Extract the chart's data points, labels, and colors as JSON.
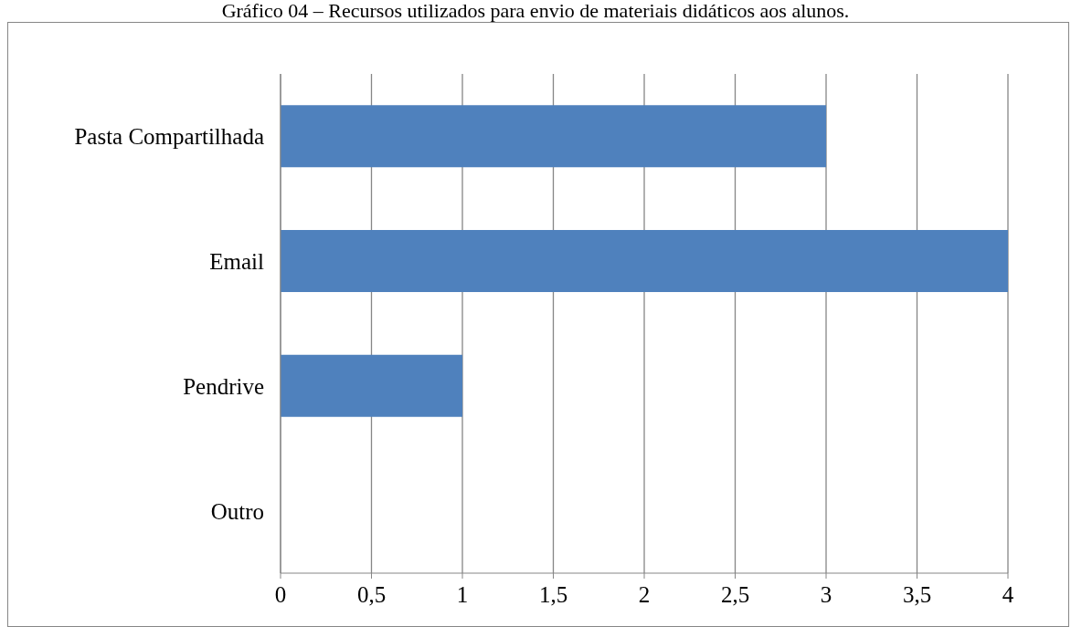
{
  "chart_data": {
    "type": "bar",
    "orientation": "horizontal",
    "title": "Gráfico 04 – Recursos utilizados para envio de materiais didáticos aos alunos.",
    "categories": [
      "Pasta Compartilhada",
      "Email",
      "Pendrive",
      "Outro"
    ],
    "values": [
      3,
      4,
      1,
      0
    ],
    "color": "#4f81bd",
    "xlim": [
      0,
      4
    ],
    "xticks": [
      0,
      {
        "value": 0.5,
        "label": "0,5"
      },
      1,
      {
        "value": 1.5,
        "label": "1,5"
      },
      2,
      {
        "value": 2.5,
        "label": "2,5"
      },
      3,
      {
        "value": 3.5,
        "label": "3,5"
      },
      4
    ],
    "grid": "x",
    "legend": false
  }
}
